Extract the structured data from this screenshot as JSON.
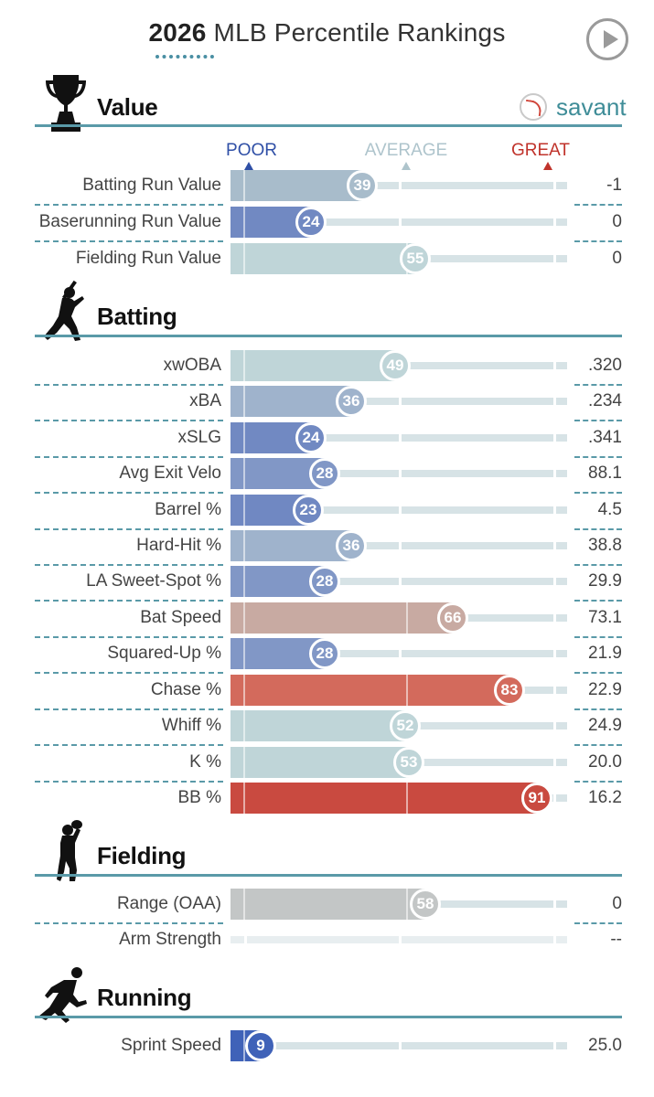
{
  "header": {
    "year": "2026",
    "title": "MLB Percentile Rankings",
    "play_icon": "play-icon"
  },
  "brand": {
    "logo_icon": "baseball-icon",
    "label": "savant"
  },
  "legend": {
    "poor": "POOR",
    "average": "AVERAGE",
    "great": "GREAT",
    "poor_color": "#2f4fa6",
    "average_color": "#aec4cc",
    "great_color": "#c0332b"
  },
  "sections": [
    {
      "id": "value",
      "title": "Value",
      "icon": "trophy-icon",
      "rows": [
        {
          "label": "Batting Run Value",
          "percentile": 39,
          "value": "-1",
          "color": "#a8bccb"
        },
        {
          "label": "Baserunning Run Value",
          "percentile": 24,
          "value": "0",
          "color": "#7189c2"
        },
        {
          "label": "Fielding Run Value",
          "percentile": 55,
          "value": "0",
          "color": "#bfd5d8"
        }
      ]
    },
    {
      "id": "batting",
      "title": "Batting",
      "icon": "batter-icon",
      "rows": [
        {
          "label": "xwOBA",
          "percentile": 49,
          "value": ".320",
          "color": "#bfd5d8"
        },
        {
          "label": "xBA",
          "percentile": 36,
          "value": ".234",
          "color": "#9fb3cc"
        },
        {
          "label": "xSLG",
          "percentile": 24,
          "value": ".341",
          "color": "#7189c2"
        },
        {
          "label": "Avg Exit Velo",
          "percentile": 28,
          "value": "88.1",
          "color": "#8197c6"
        },
        {
          "label": "Barrel %",
          "percentile": 23,
          "value": "4.5",
          "color": "#7088c2"
        },
        {
          "label": "Hard-Hit %",
          "percentile": 36,
          "value": "38.8",
          "color": "#9fb3cc"
        },
        {
          "label": "LA Sweet-Spot %",
          "percentile": 28,
          "value": "29.9",
          "color": "#8197c6"
        },
        {
          "label": "Bat Speed",
          "percentile": 66,
          "value": "73.1",
          "color": "#c8aaa2"
        },
        {
          "label": "Squared-Up %",
          "percentile": 28,
          "value": "21.9",
          "color": "#8197c6"
        },
        {
          "label": "Chase %",
          "percentile": 83,
          "value": "22.9",
          "color": "#d36a5c"
        },
        {
          "label": "Whiff %",
          "percentile": 52,
          "value": "24.9",
          "color": "#bfd5d8"
        },
        {
          "label": "K %",
          "percentile": 53,
          "value": "20.0",
          "color": "#bfd5d8"
        },
        {
          "label": "BB %",
          "percentile": 91,
          "value": "16.2",
          "color": "#c94a40"
        }
      ]
    },
    {
      "id": "fielding",
      "title": "Fielding",
      "icon": "fielder-icon",
      "rows": [
        {
          "label": "Range (OAA)",
          "percentile": 58,
          "value": "0",
          "color": "#c3c6c6"
        },
        {
          "label": "Arm Strength",
          "percentile": null,
          "value": "--",
          "color": "#e8eef0"
        }
      ]
    },
    {
      "id": "running",
      "title": "Running",
      "icon": "runner-icon",
      "rows": [
        {
          "label": "Sprint Speed",
          "percentile": 9,
          "value": "25.0",
          "color": "#3f62b8"
        }
      ]
    }
  ]
}
